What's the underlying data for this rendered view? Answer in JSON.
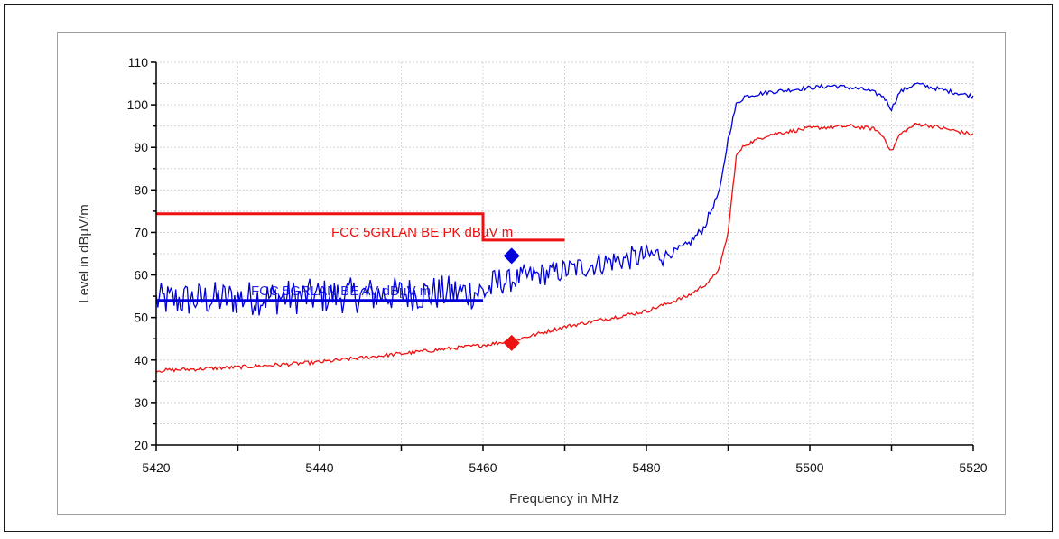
{
  "chart_data": {
    "type": "line",
    "title": "",
    "xlabel": "Frequency in MHz",
    "ylabel": "Level in dBµV/m",
    "xlim": [
      5420,
      5520
    ],
    "ylim": [
      20,
      110
    ],
    "x_ticks": [
      "5420",
      "5440",
      "5460",
      "5480",
      "5500",
      "5520"
    ],
    "y_ticks": [
      "20",
      "30",
      "40",
      "50",
      "60",
      "70",
      "80",
      "90",
      "100",
      "110"
    ],
    "grid": true,
    "colors": {
      "peak": "#0000dd",
      "average": "#ee1111"
    },
    "series": [
      {
        "color": "#0000dd",
        "x": [
          5420,
          5430,
          5440,
          5450,
          5460,
          5462,
          5465,
          5470,
          5475,
          5480,
          5483,
          5485,
          5487,
          5489,
          5490,
          5491,
          5492,
          5495,
          5500,
          5503,
          5505,
          5507,
          5509,
          5510,
          5511,
          5513,
          5515,
          5520
        ],
        "values": [
          54,
          54.5,
          55,
          55.5,
          56,
          58,
          59.5,
          61,
          63,
          64.5,
          65,
          67,
          71,
          80,
          92,
          100,
          102,
          103,
          104,
          104.5,
          104,
          103.5,
          102,
          99,
          103,
          105,
          104,
          102
        ]
      },
      {
        "color": "#ee1111",
        "x": [
          5420,
          5430,
          5440,
          5450,
          5460,
          5463.5,
          5470,
          5480,
          5485,
          5487,
          5488,
          5489,
          5490,
          5491,
          5492,
          5495,
          5500,
          5505,
          5508,
          5509,
          5510,
          5511,
          5513,
          5515,
          5520
        ],
        "values": [
          37.5,
          38.3,
          39.5,
          41.5,
          43.5,
          44.5,
          47.8,
          51.5,
          55,
          57.5,
          59,
          62,
          70,
          88,
          90.5,
          93,
          94.5,
          95,
          94.3,
          92.5,
          89,
          93,
          95.5,
          95,
          93
        ]
      }
    ],
    "limit_lines": [
      {
        "label": "FCC 5GRLAN BE PK dBµV  m",
        "color": "#ee1111",
        "points": [
          [
            5420,
            74.4
          ],
          [
            5460,
            74.4
          ],
          [
            5460,
            68.2
          ],
          [
            5470,
            68.2
          ]
        ]
      },
      {
        "label": "FCC 5GRLAN BE AV dBµV  m",
        "color": "#0000dd",
        "points": [
          [
            5420,
            54
          ],
          [
            5460,
            54
          ]
        ]
      }
    ],
    "markers": [
      {
        "x": 5463.5,
        "y": 64.5,
        "color": "#0000dd"
      },
      {
        "x": 5463.5,
        "y": 44,
        "color": "#ee1111"
      }
    ]
  }
}
